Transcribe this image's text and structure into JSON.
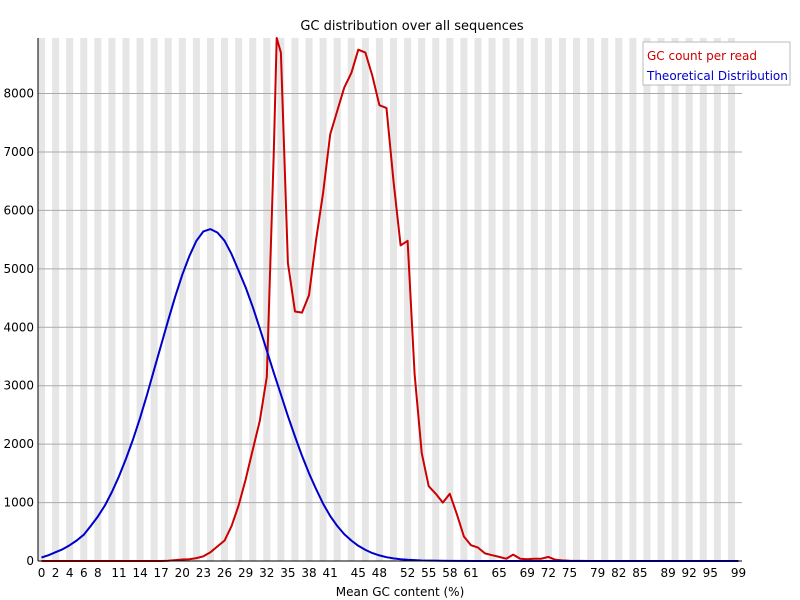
{
  "chart_data": {
    "type": "line",
    "title": "GC distribution over all sequences",
    "xlabel": "Mean GC content (%)",
    "ylabel": "",
    "xlim": [
      0,
      100
    ],
    "ylim": [
      0,
      8950
    ],
    "grid": true,
    "legend_position": "top-right",
    "x_tick_labels": [
      "0",
      "2",
      "4",
      "6",
      "8",
      "11",
      "14",
      "17",
      "20",
      "23",
      "26",
      "29",
      "32",
      "35",
      "38",
      "41",
      "45",
      "48",
      "52",
      "55",
      "58",
      "61",
      "65",
      "69",
      "72",
      "75",
      "79",
      "82",
      "85",
      "89",
      "92",
      "95",
      "99"
    ],
    "y_ticks": [
      0,
      1000,
      2000,
      3000,
      4000,
      5000,
      6000,
      7000,
      8000
    ],
    "series": [
      {
        "name": "GC count per read",
        "color": "#cc0000",
        "points": [
          [
            0,
            0
          ],
          [
            2,
            0
          ],
          [
            4,
            0
          ],
          [
            6,
            0
          ],
          [
            8,
            0
          ],
          [
            11,
            0
          ],
          [
            14,
            0
          ],
          [
            17,
            0
          ],
          [
            18,
            5
          ],
          [
            19,
            15
          ],
          [
            20,
            25
          ],
          [
            21,
            30
          ],
          [
            22,
            50
          ],
          [
            23,
            80
          ],
          [
            24,
            150
          ],
          [
            25,
            250
          ],
          [
            26,
            350
          ],
          [
            27,
            600
          ],
          [
            28,
            950
          ],
          [
            29,
            1400
          ],
          [
            30,
            1900
          ],
          [
            31,
            2400
          ],
          [
            32,
            3150
          ],
          [
            33,
            7000
          ],
          [
            33.4,
            8950
          ],
          [
            34,
            8700
          ],
          [
            35,
            5100
          ],
          [
            36,
            4270
          ],
          [
            37,
            4250
          ],
          [
            38,
            4550
          ],
          [
            39,
            5500
          ],
          [
            40,
            6300
          ],
          [
            41,
            7300
          ],
          [
            42,
            7700
          ],
          [
            43,
            8100
          ],
          [
            44,
            8350
          ],
          [
            45,
            8750
          ],
          [
            46,
            8700
          ],
          [
            47,
            8300
          ],
          [
            48,
            7800
          ],
          [
            49,
            7750
          ],
          [
            50,
            6500
          ],
          [
            51,
            5400
          ],
          [
            52,
            5480
          ],
          [
            53,
            3200
          ],
          [
            54,
            1850
          ],
          [
            55,
            1280
          ],
          [
            56,
            1150
          ],
          [
            57,
            1000
          ],
          [
            58,
            1150
          ],
          [
            59,
            800
          ],
          [
            60,
            420
          ],
          [
            61,
            270
          ],
          [
            62,
            230
          ],
          [
            63,
            130
          ],
          [
            64,
            100
          ],
          [
            65,
            70
          ],
          [
            66,
            40
          ],
          [
            67,
            110
          ],
          [
            68,
            40
          ],
          [
            69,
            30
          ],
          [
            70,
            40
          ],
          [
            71,
            40
          ],
          [
            72,
            70
          ],
          [
            73,
            20
          ],
          [
            74,
            10
          ],
          [
            75,
            5
          ],
          [
            78,
            0
          ],
          [
            99,
            0
          ]
        ]
      },
      {
        "name": "Theoretical Distribution",
        "color": "#0000cc",
        "points": [
          [
            0,
            60
          ],
          [
            1,
            100
          ],
          [
            2,
            150
          ],
          [
            3,
            200
          ],
          [
            4,
            270
          ],
          [
            5,
            350
          ],
          [
            6,
            450
          ],
          [
            7,
            600
          ],
          [
            8,
            760
          ],
          [
            9,
            950
          ],
          [
            10,
            1180
          ],
          [
            11,
            1450
          ],
          [
            12,
            1750
          ],
          [
            13,
            2080
          ],
          [
            14,
            2450
          ],
          [
            15,
            2850
          ],
          [
            16,
            3280
          ],
          [
            17,
            3700
          ],
          [
            18,
            4120
          ],
          [
            19,
            4530
          ],
          [
            20,
            4900
          ],
          [
            21,
            5220
          ],
          [
            22,
            5480
          ],
          [
            23,
            5640
          ],
          [
            24,
            5680
          ],
          [
            25,
            5620
          ],
          [
            26,
            5480
          ],
          [
            27,
            5250
          ],
          [
            28,
            4970
          ],
          [
            29,
            4680
          ],
          [
            30,
            4350
          ],
          [
            31,
            3980
          ],
          [
            32,
            3600
          ],
          [
            33,
            3220
          ],
          [
            34,
            2850
          ],
          [
            35,
            2480
          ],
          [
            36,
            2130
          ],
          [
            37,
            1800
          ],
          [
            38,
            1500
          ],
          [
            39,
            1230
          ],
          [
            40,
            980
          ],
          [
            41,
            770
          ],
          [
            42,
            600
          ],
          [
            43,
            460
          ],
          [
            44,
            350
          ],
          [
            45,
            260
          ],
          [
            46,
            190
          ],
          [
            47,
            135
          ],
          [
            48,
            95
          ],
          [
            49,
            65
          ],
          [
            50,
            45
          ],
          [
            51,
            30
          ],
          [
            52,
            20
          ],
          [
            54,
            8
          ],
          [
            58,
            2
          ],
          [
            62,
            0
          ],
          [
            99,
            0
          ]
        ]
      }
    ]
  }
}
